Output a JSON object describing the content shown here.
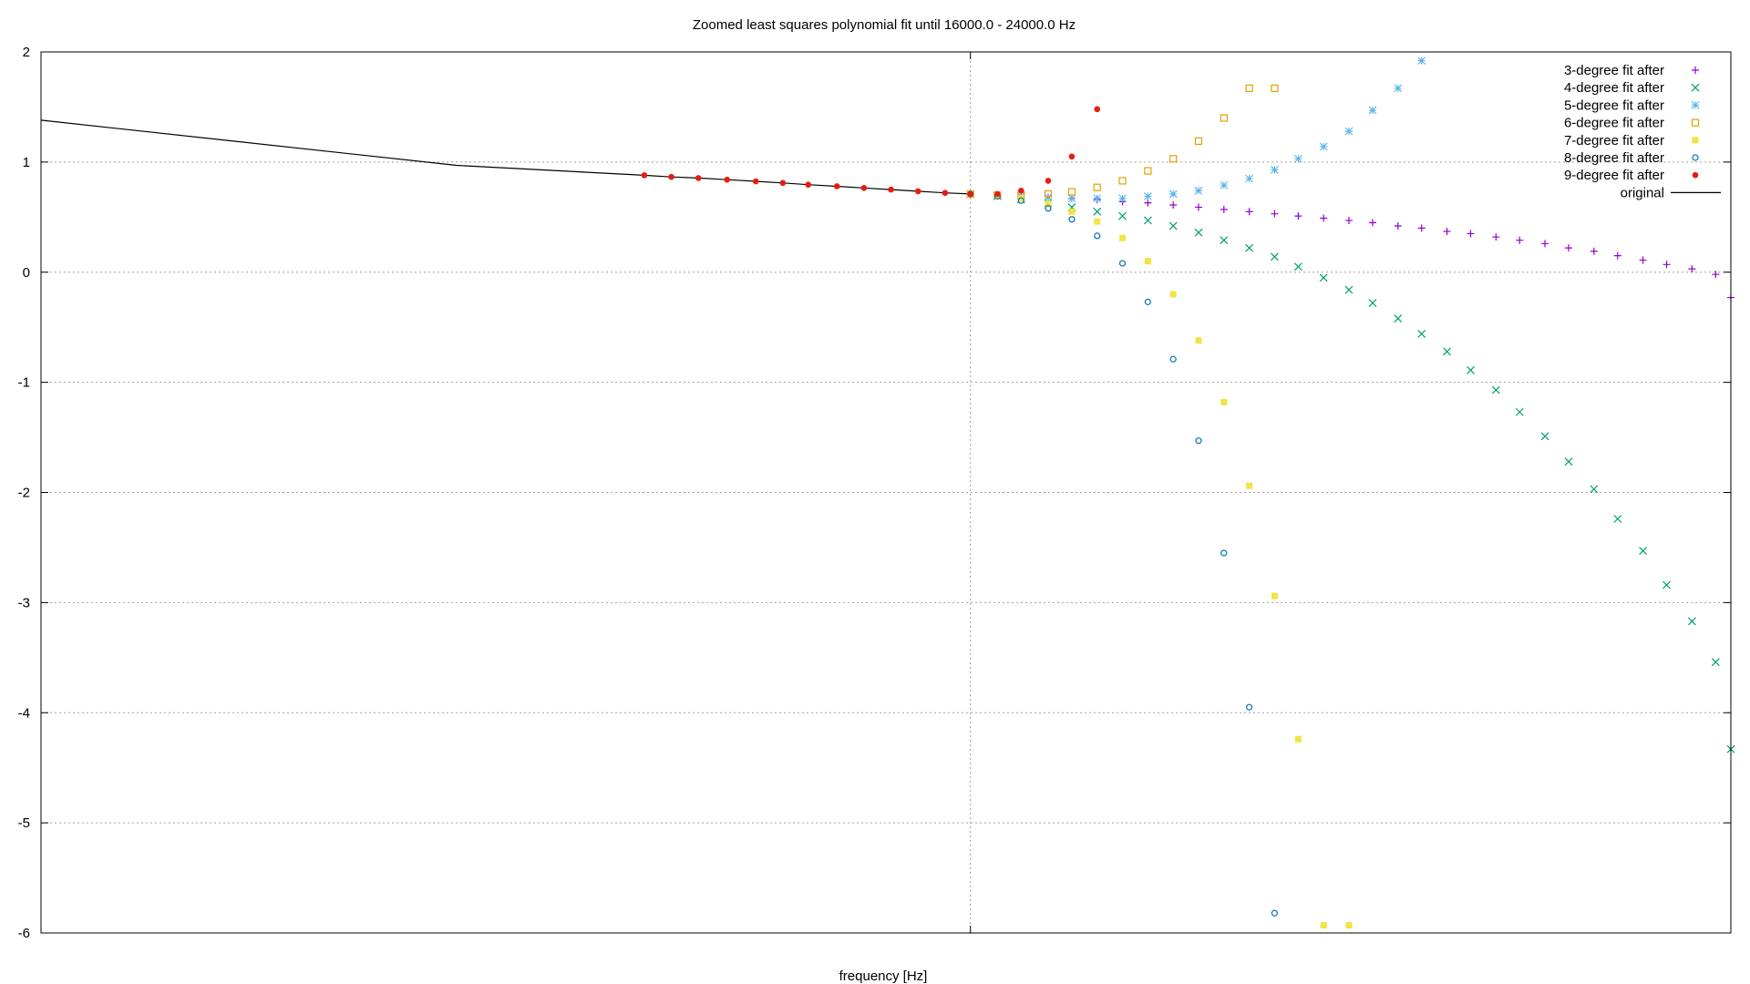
{
  "chart_data": {
    "type": "scatter",
    "title": "Zoomed least squares polynomial fit until 16000.0 - 24000.0 Hz",
    "xlabel": "frequency [Hz]",
    "ylabel": "",
    "ylim": [
      -6,
      2
    ],
    "xlim": [
      0,
      100
    ],
    "y_ticks": [
      "2",
      "1",
      "0",
      "-1",
      "-2",
      "-3",
      "-4",
      "-5",
      "-6"
    ],
    "y_tick_values": [
      2,
      1,
      0,
      -1,
      -2,
      -3,
      -4,
      -5,
      -6
    ],
    "x_ticks_visible": false,
    "grid": true,
    "zero_line_x": 55,
    "legend_position": "top-right",
    "original": {
      "name": "original",
      "color": "#000000",
      "x": [
        0,
        24.6,
        35.7,
        37.3,
        38.9,
        40.6,
        42.3,
        43.9,
        45.4,
        47.1,
        48.7,
        50.3,
        51.9,
        53.5,
        55.0
      ],
      "y": [
        1.38,
        0.97,
        0.88,
        0.865,
        0.855,
        0.84,
        0.825,
        0.81,
        0.795,
        0.78,
        0.765,
        0.75,
        0.735,
        0.72,
        0.71
      ]
    },
    "series": [
      {
        "name": "3-degree fit after",
        "marker": "plus",
        "color": "#9400d3",
        "x": [
          55.0,
          56.6,
          58.0,
          59.6,
          61.0,
          62.5,
          64.0,
          65.5,
          67.0,
          68.5,
          70.0,
          71.5,
          73.0,
          74.4,
          75.9,
          77.4,
          78.8,
          80.3,
          81.7,
          83.2,
          84.6,
          86.1,
          87.5,
          89.0,
          90.4,
          91.9,
          93.3,
          94.8,
          96.2,
          97.7,
          99.1,
          100.0
        ],
        "y": [
          0.71,
          0.7,
          0.69,
          0.68,
          0.67,
          0.66,
          0.64,
          0.63,
          0.61,
          0.59,
          0.57,
          0.55,
          0.53,
          0.51,
          0.49,
          0.47,
          0.45,
          0.42,
          0.4,
          0.37,
          0.35,
          0.32,
          0.29,
          0.26,
          0.22,
          0.19,
          0.15,
          0.11,
          0.07,
          0.03,
          -0.02,
          -0.23
        ]
      },
      {
        "name": "4-degree fit after",
        "marker": "cross",
        "color": "#009e73",
        "x": [
          55.0,
          56.6,
          58.0,
          59.6,
          61.0,
          62.5,
          64.0,
          65.5,
          67.0,
          68.5,
          70.0,
          71.5,
          73.0,
          74.4,
          75.9,
          77.4,
          78.8,
          80.3,
          81.7,
          83.2,
          84.6,
          86.1,
          87.5,
          89.0,
          90.4,
          91.9,
          93.3,
          94.8,
          96.2,
          97.7,
          99.1,
          100.0
        ],
        "y": [
          0.71,
          0.69,
          0.66,
          0.63,
          0.59,
          0.55,
          0.51,
          0.47,
          0.42,
          0.36,
          0.29,
          0.22,
          0.14,
          0.05,
          -0.05,
          -0.16,
          -0.28,
          -0.42,
          -0.56,
          -0.72,
          -0.89,
          -1.07,
          -1.27,
          -1.49,
          -1.72,
          -1.97,
          -2.24,
          -2.53,
          -2.84,
          -3.17,
          -3.54,
          -4.33
        ]
      },
      {
        "name": "5-degree fit after",
        "marker": "star",
        "color": "#56b4e9",
        "x": [
          55.0,
          56.6,
          58.0,
          59.6,
          61.0,
          62.5,
          64.0,
          65.5,
          67.0,
          68.5,
          70.0,
          71.5,
          73.0,
          74.4,
          75.9,
          77.4,
          78.8,
          80.3,
          81.7
        ],
        "y": [
          0.71,
          0.7,
          0.69,
          0.68,
          0.67,
          0.67,
          0.67,
          0.69,
          0.71,
          0.74,
          0.79,
          0.85,
          0.93,
          1.03,
          1.14,
          1.28,
          1.47,
          1.67,
          1.92
        ]
      },
      {
        "name": "6-degree fit after",
        "marker": "open-square",
        "color": "#e69f00",
        "x": [
          55.0,
          56.6,
          58.0,
          59.6,
          61.0,
          62.5,
          64.0,
          65.5,
          67.0,
          68.5,
          70.0,
          71.5,
          73.0
        ],
        "y": [
          0.71,
          0.7,
          0.7,
          0.71,
          0.73,
          0.77,
          0.83,
          0.92,
          1.03,
          1.19,
          1.4,
          1.67,
          1.67
        ]
      },
      {
        "name": "7-degree fit after",
        "marker": "filled-square",
        "color": "#f0e442",
        "x": [
          55.0,
          56.6,
          58.0,
          59.6,
          61.0,
          62.5,
          64.0,
          65.5,
          67.0,
          68.5,
          70.0,
          71.5,
          73.0,
          74.4,
          75.9,
          77.4
        ],
        "y": [
          0.71,
          0.7,
          0.67,
          0.62,
          0.55,
          0.46,
          0.31,
          0.1,
          -0.2,
          -0.62,
          -1.18,
          -1.94,
          -2.94,
          -4.24,
          -5.93,
          -5.93
        ]
      },
      {
        "name": "8-degree fit after",
        "marker": "open-circle",
        "color": "#0072b2",
        "x": [
          55.0,
          56.6,
          58.0,
          59.6,
          61.0,
          62.5,
          64.0,
          65.5,
          67.0,
          68.5,
          70.0,
          71.5,
          73.0
        ],
        "y": [
          0.71,
          0.69,
          0.65,
          0.58,
          0.48,
          0.33,
          0.08,
          -0.27,
          -0.79,
          -1.53,
          -2.55,
          -3.95,
          -5.82
        ]
      },
      {
        "name": "9-degree fit after",
        "marker": "filled-circle",
        "color": "#e51e10",
        "x": [
          35.7,
          37.3,
          38.9,
          40.6,
          42.3,
          43.9,
          45.4,
          47.1,
          48.7,
          50.3,
          51.9,
          53.5,
          55.0,
          56.6,
          58.0,
          59.6,
          61.0,
          62.5
        ],
        "y": [
          0.88,
          0.865,
          0.855,
          0.84,
          0.825,
          0.81,
          0.795,
          0.78,
          0.765,
          0.75,
          0.735,
          0.72,
          0.71,
          0.71,
          0.74,
          0.83,
          1.05,
          1.48
        ]
      }
    ]
  }
}
